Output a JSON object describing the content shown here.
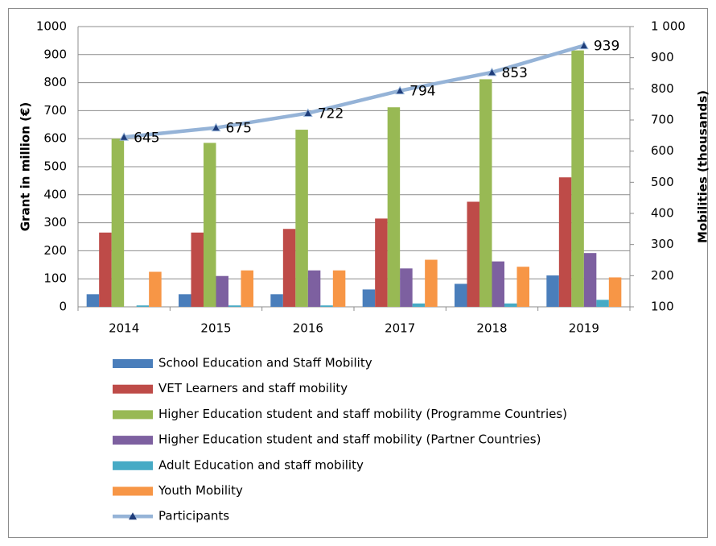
{
  "chart_data": {
    "type": "bar",
    "categories": [
      "2014",
      "2015",
      "2016",
      "2017",
      "2018",
      "2019"
    ],
    "series": [
      {
        "name": "School Education and Staff Mobility",
        "color": "#4a7ebb",
        "values": [
          45,
          45,
          45,
          62,
          82,
          112
        ]
      },
      {
        "name": "VET Learners and staff mobility",
        "color": "#be4b48",
        "values": [
          265,
          265,
          278,
          315,
          375,
          462
        ]
      },
      {
        "name": "Higher Education student and staff mobility (Programme Countries)",
        "color": "#98b954",
        "values": [
          600,
          585,
          632,
          712,
          812,
          915
        ]
      },
      {
        "name": "Higher Education student and staff mobility (Partner Countries)",
        "color": "#7d60a0",
        "values": [
          0,
          110,
          130,
          137,
          162,
          192
        ]
      },
      {
        "name": "Adult Education and staff mobility",
        "color": "#46aac5",
        "values": [
          5,
          5,
          5,
          12,
          12,
          25
        ]
      },
      {
        "name": "Youth Mobility",
        "color": "#f79646",
        "values": [
          125,
          130,
          130,
          168,
          143,
          105
        ]
      },
      {
        "name": "Participants",
        "type": "line",
        "axis": "y2",
        "color": "#95b3d7",
        "marker_color": "#1f3d7a",
        "values": [
          645,
          675,
          722,
          794,
          853,
          939
        ]
      }
    ],
    "ylabel": "Grant in million (€)",
    "y2label": "Mobilities (thousands)",
    "ylim": [
      0,
      1000
    ],
    "yticks": [
      0,
      100,
      200,
      300,
      400,
      500,
      600,
      700,
      800,
      900,
      1000
    ],
    "y2lim": [
      100,
      1000
    ],
    "y2ticks": [
      100,
      200,
      300,
      400,
      500,
      600,
      700,
      800,
      900,
      {
        "value": 1000,
        "label": "1 000"
      }
    ],
    "grid": true,
    "legend": "bottom"
  }
}
